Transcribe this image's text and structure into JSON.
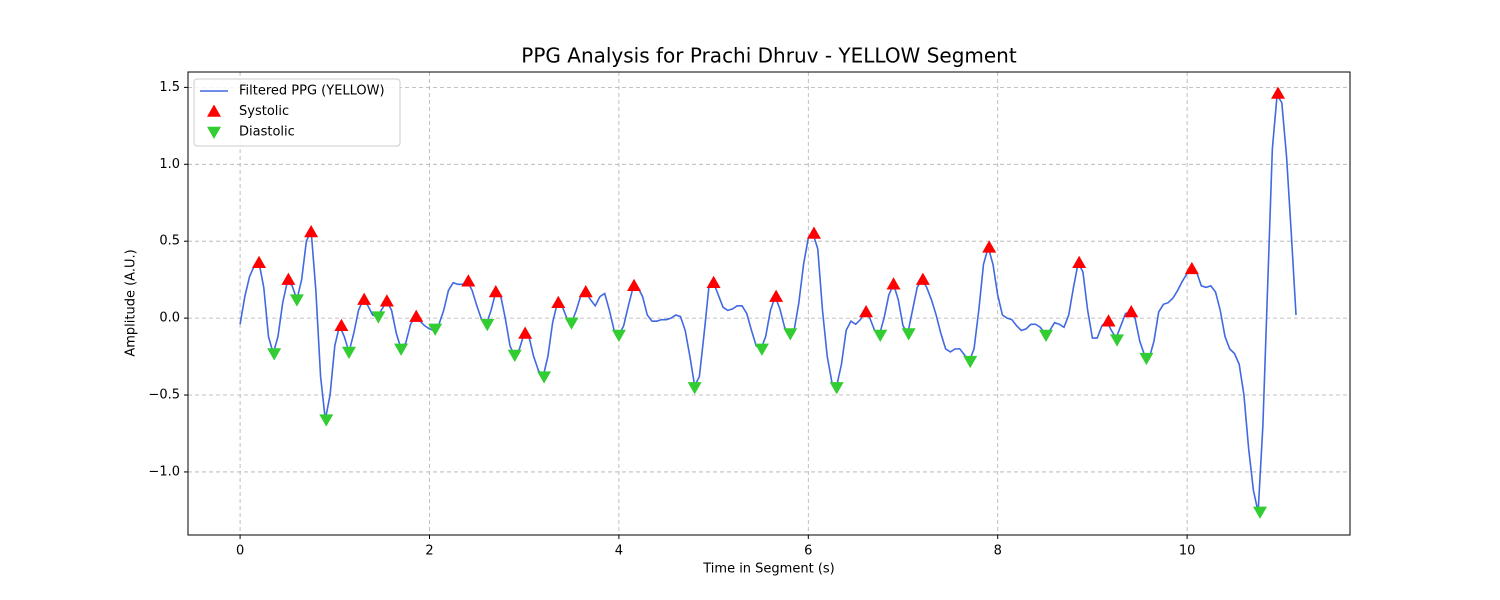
{
  "chart_data": {
    "type": "line",
    "title": "PPG Analysis for Prachi Dhruv - YELLOW Segment",
    "x_label": "Time in Segment (s)",
    "y_label": "Amplitude (A.U.)",
    "xlim": [
      -0.55,
      11.72
    ],
    "ylim": [
      -1.41,
      1.6
    ],
    "xticks": [
      0,
      2,
      4,
      6,
      8,
      10
    ],
    "yticks": [
      {
        "value": -1.0,
        "label": "−1.0"
      },
      {
        "value": -0.5,
        "label": "−0.5"
      },
      {
        "value": 0,
        "label": "0.0"
      },
      {
        "value": 0.5,
        "label": "0.5"
      },
      {
        "value": 1.0,
        "label": "1.0"
      },
      {
        "value": 1.5,
        "label": "1.5"
      }
    ],
    "grid": true,
    "legend": "upper left",
    "series": [
      {
        "name": "Filtered PPG (YELLOW)",
        "type": "line",
        "color": "#4169e1",
        "x": [
          0,
          0.05,
          0.1,
          0.15,
          0.2,
          0.25,
          0.3,
          0.35,
          0.4,
          0.45,
          0.5,
          0.55,
          0.6,
          0.65,
          0.7,
          0.75,
          0.8,
          0.85,
          0.9,
          0.95,
          1,
          1.05,
          1.1,
          1.15,
          1.2,
          1.25,
          1.3,
          1.35,
          1.4,
          1.45,
          1.5,
          1.55,
          1.6,
          1.65,
          1.7,
          1.75,
          1.8,
          1.85,
          1.9,
          1.95,
          2,
          2.05,
          2.1,
          2.15,
          2.2,
          2.25,
          2.3,
          2.35,
          2.4,
          2.45,
          2.5,
          2.55,
          2.6,
          2.65,
          2.7,
          2.75,
          2.8,
          2.85,
          2.9,
          2.95,
          3,
          3.05,
          3.1,
          3.15,
          3.2,
          3.25,
          3.3,
          3.35,
          3.4,
          3.45,
          3.5,
          3.55,
          3.6,
          3.65,
          3.7,
          3.75,
          3.8,
          3.85,
          3.9,
          3.95,
          4,
          4.05,
          4.1,
          4.15,
          4.2,
          4.25,
          4.3,
          4.35,
          4.4,
          4.45,
          4.5,
          4.55,
          4.6,
          4.65,
          4.7,
          4.75,
          4.8,
          4.85,
          4.9,
          4.95,
          5,
          5.05,
          5.1,
          5.15,
          5.2,
          5.25,
          5.3,
          5.35,
          5.4,
          5.45,
          5.5,
          5.55,
          5.6,
          5.65,
          5.7,
          5.75,
          5.8,
          5.85,
          5.9,
          5.95,
          6,
          6.05,
          6.1,
          6.15,
          6.2,
          6.25,
          6.3,
          6.35,
          6.4,
          6.45,
          6.5,
          6.55,
          6.6,
          6.65,
          6.7,
          6.75,
          6.8,
          6.85,
          6.9,
          6.95,
          7,
          7.05,
          7.1,
          7.15,
          7.2,
          7.25,
          7.3,
          7.35,
          7.4,
          7.45,
          7.5,
          7.55,
          7.6,
          7.65,
          7.7,
          7.75,
          7.8,
          7.85,
          7.9,
          7.95,
          8,
          8.05,
          8.1,
          8.15,
          8.2,
          8.25,
          8.3,
          8.35,
          8.4,
          8.45,
          8.5,
          8.55,
          8.6,
          8.65,
          8.7,
          8.75,
          8.8,
          8.85,
          8.9,
          8.95,
          9,
          9.05,
          9.1,
          9.15,
          9.2,
          9.25,
          9.3,
          9.35,
          9.4,
          9.45,
          9.5,
          9.55,
          9.6,
          9.65,
          9.7,
          9.75,
          9.8,
          9.85,
          9.9,
          9.95,
          10,
          10.05,
          10.1,
          10.15,
          10.2,
          10.25,
          10.3,
          10.35,
          10.4,
          10.45,
          10.5,
          10.55,
          10.6,
          10.65,
          10.7,
          10.75,
          10.8,
          10.85,
          10.9,
          10.95,
          11,
          11.05,
          11.1,
          11.15
        ],
        "values": [
          -0.04,
          0.14,
          0.27,
          0.34,
          0.36,
          0.2,
          -0.12,
          -0.23,
          -0.12,
          0.1,
          0.24,
          0.21,
          0.12,
          0.25,
          0.5,
          0.57,
          0.18,
          -0.38,
          -0.66,
          -0.5,
          -0.18,
          -0.05,
          -0.12,
          -0.22,
          -0.1,
          0.05,
          0.12,
          0.08,
          0.02,
          0.01,
          0.06,
          0.11,
          0.05,
          -0.1,
          -0.2,
          -0.16,
          -0.04,
          0.01,
          -0.02,
          -0.05,
          -0.07,
          -0.08,
          -0.04,
          0.05,
          0.18,
          0.23,
          0.22,
          0.22,
          0.24,
          0.18,
          0.08,
          -0.01,
          -0.04,
          0.05,
          0.17,
          0.15,
          0,
          -0.18,
          -0.25,
          -0.2,
          -0.1,
          -0.12,
          -0.25,
          -0.34,
          -0.38,
          -0.25,
          -0.03,
          0.1,
          0.08,
          0,
          -0.03,
          0.05,
          0.15,
          0.17,
          0.12,
          0.08,
          0.14,
          0.16,
          0.05,
          -0.08,
          -0.11,
          -0.05,
          0.08,
          0.2,
          0.2,
          0.14,
          0.02,
          -0.02,
          -0.02,
          -0.01,
          -0.01,
          0,
          0.02,
          0.01,
          -0.08,
          -0.25,
          -0.44,
          -0.38,
          -0.1,
          0.2,
          0.23,
          0.15,
          0.07,
          0.05,
          0.06,
          0.08,
          0.08,
          0.03,
          -0.08,
          -0.18,
          -0.2,
          -0.12,
          0.05,
          0.14,
          0.06,
          -0.06,
          -0.11,
          -0.08,
          0.1,
          0.35,
          0.52,
          0.55,
          0.45,
          0.05,
          -0.25,
          -0.42,
          -0.44,
          -0.3,
          -0.08,
          -0.02,
          -0.04,
          -0.01,
          0.04,
          0,
          -0.08,
          -0.11,
          0,
          0.15,
          0.22,
          0.12,
          -0.05,
          -0.1,
          0.05,
          0.2,
          0.25,
          0.2,
          0.12,
          0.02,
          -0.1,
          -0.2,
          -0.22,
          -0.2,
          -0.2,
          -0.24,
          -0.28,
          -0.2,
          0.05,
          0.35,
          0.46,
          0.35,
          0.15,
          0.02,
          0,
          -0.01,
          -0.05,
          -0.08,
          -0.07,
          -0.04,
          -0.04,
          -0.06,
          -0.1,
          -0.08,
          -0.03,
          -0.04,
          -0.06,
          0.02,
          0.2,
          0.36,
          0.3,
          0.05,
          -0.13,
          -0.13,
          -0.05,
          -0.02,
          -0.08,
          -0.13,
          -0.05,
          0.03,
          0.04,
          0,
          -0.15,
          -0.24,
          -0.26,
          -0.15,
          0.04,
          0.09,
          0.1,
          0.13,
          0.18,
          0.24,
          0.29,
          0.32,
          0.3,
          0.21,
          0.2,
          0.21,
          0.17,
          0.05,
          -0.12,
          -0.2,
          -0.23,
          -0.3,
          -0.5,
          -0.85,
          -1.12,
          -1.26,
          -0.7,
          0.2,
          1.1,
          1.45,
          1.4,
          1.05,
          0.55,
          0.02
        ]
      },
      {
        "name": "Systolic",
        "type": "scatter",
        "marker": "triangle-up",
        "color": "#ff0000",
        "x": [
          0.2,
          0.51,
          0.75,
          1.07,
          1.31,
          1.55,
          1.86,
          2.41,
          2.7,
          3.01,
          3.36,
          3.65,
          4.16,
          5.0,
          5.66,
          6.06,
          6.61,
          6.9,
          7.21,
          7.91,
          8.86,
          9.17,
          9.41,
          10.05,
          10.96
        ],
        "values": [
          0.36,
          0.25,
          0.56,
          -0.05,
          0.12,
          0.11,
          0.01,
          0.24,
          0.17,
          -0.1,
          0.1,
          0.17,
          0.21,
          0.23,
          0.14,
          0.55,
          0.04,
          0.22,
          0.25,
          0.46,
          0.36,
          -0.02,
          0.04,
          0.32,
          1.46
        ]
      },
      {
        "name": "Diastolic",
        "type": "scatter",
        "marker": "triangle-down",
        "color": "#32cd32",
        "x": [
          0.36,
          0.6,
          0.91,
          1.15,
          1.46,
          1.7,
          2.06,
          2.61,
          2.9,
          3.21,
          3.5,
          4.0,
          4.8,
          5.51,
          5.81,
          6.3,
          6.76,
          7.06,
          7.71,
          8.51,
          9.26,
          9.57,
          10.77
        ],
        "values": [
          -0.23,
          0.12,
          -0.66,
          -0.22,
          0.01,
          -0.2,
          -0.07,
          -0.04,
          -0.24,
          -0.38,
          -0.03,
          -0.11,
          -0.45,
          -0.2,
          -0.1,
          -0.45,
          -0.11,
          -0.1,
          -0.28,
          -0.11,
          -0.14,
          -0.26,
          -1.26
        ]
      }
    ]
  }
}
